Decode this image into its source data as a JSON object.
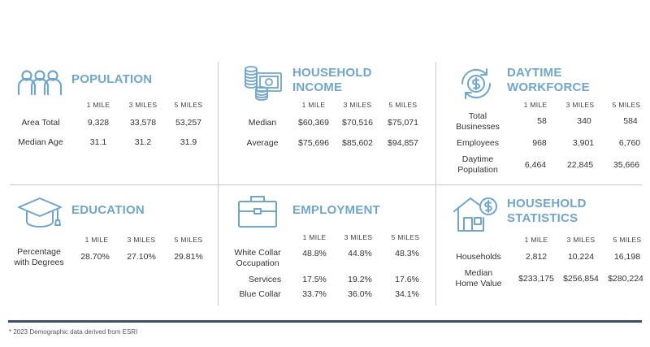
{
  "columns": [
    "1 MILE",
    "3 MILES",
    "5 MILES"
  ],
  "population": {
    "title": "POPULATION",
    "icon": "people-group-icon",
    "rows": [
      {
        "label": "Area Total",
        "values": [
          "9,328",
          "33,578",
          "53,257"
        ]
      },
      {
        "label": "Median Age",
        "values": [
          "31.1",
          "31.2",
          "31.9"
        ]
      }
    ]
  },
  "household_income": {
    "title_line1": "HOUSEHOLD",
    "title_line2": "INCOME",
    "icon": "coins-and-cash-icon",
    "rows": [
      {
        "label": "Median",
        "values": [
          "$60,369",
          "$70,516",
          "$75,071"
        ]
      },
      {
        "label": "Average",
        "values": [
          "$75,696",
          "$85,602",
          "$94,857"
        ]
      }
    ]
  },
  "daytime_workforce": {
    "title_line1": "DAYTIME",
    "title_line2": "WORKFORCE",
    "icon": "dollar-cycle-icon",
    "rows": [
      {
        "label_line1": "Total",
        "label_line2": "Businesses",
        "values": [
          "58",
          "340",
          "584"
        ]
      },
      {
        "label_line1": "Employees",
        "label_line2": "",
        "values": [
          "968",
          "3,901",
          "6,760"
        ]
      },
      {
        "label_line1": "Daytime",
        "label_line2": "Population",
        "values": [
          "6,464",
          "22,845",
          "35,666"
        ]
      }
    ]
  },
  "education": {
    "title": "EDUCATION",
    "icon": "graduation-cap-icon",
    "rows": [
      {
        "label_line1": "Percentage",
        "label_line2": "with Degrees",
        "values": [
          "28.70%",
          "27.10%",
          "29.81%"
        ]
      }
    ]
  },
  "employment": {
    "title": "EMPLOYMENT",
    "icon": "briefcase-icon",
    "rows": [
      {
        "label_line1": "White Collar",
        "label_line2": "Occupation",
        "values": [
          "48.8%",
          "44.8%",
          "48.3%"
        ]
      },
      {
        "label_line1": "Services",
        "label_line2": "",
        "values": [
          "17.5%",
          "19.2%",
          "17.6%"
        ]
      },
      {
        "label_line1": "Blue Collar",
        "label_line2": "",
        "values": [
          "33.7%",
          "36.0%",
          "34.1%"
        ]
      }
    ]
  },
  "household_statistics": {
    "title_line1": "HOUSEHOLD",
    "title_line2": "STATISTICS",
    "icon": "house-dollar-icon",
    "rows": [
      {
        "label_line1": "Households",
        "label_line2": "",
        "values": [
          "2,812",
          "10,224",
          "16,198"
        ]
      },
      {
        "label_line1": "Median",
        "label_line2": "Home Value",
        "values": [
          "$233,175",
          "$256,854",
          "$280,224"
        ]
      }
    ]
  },
  "footnote": "* 2023 Demographic data derived from ESRI",
  "colors": {
    "accent": "#6ea6d0",
    "rule": "#3b5064",
    "divider": "#c9c9c9"
  }
}
